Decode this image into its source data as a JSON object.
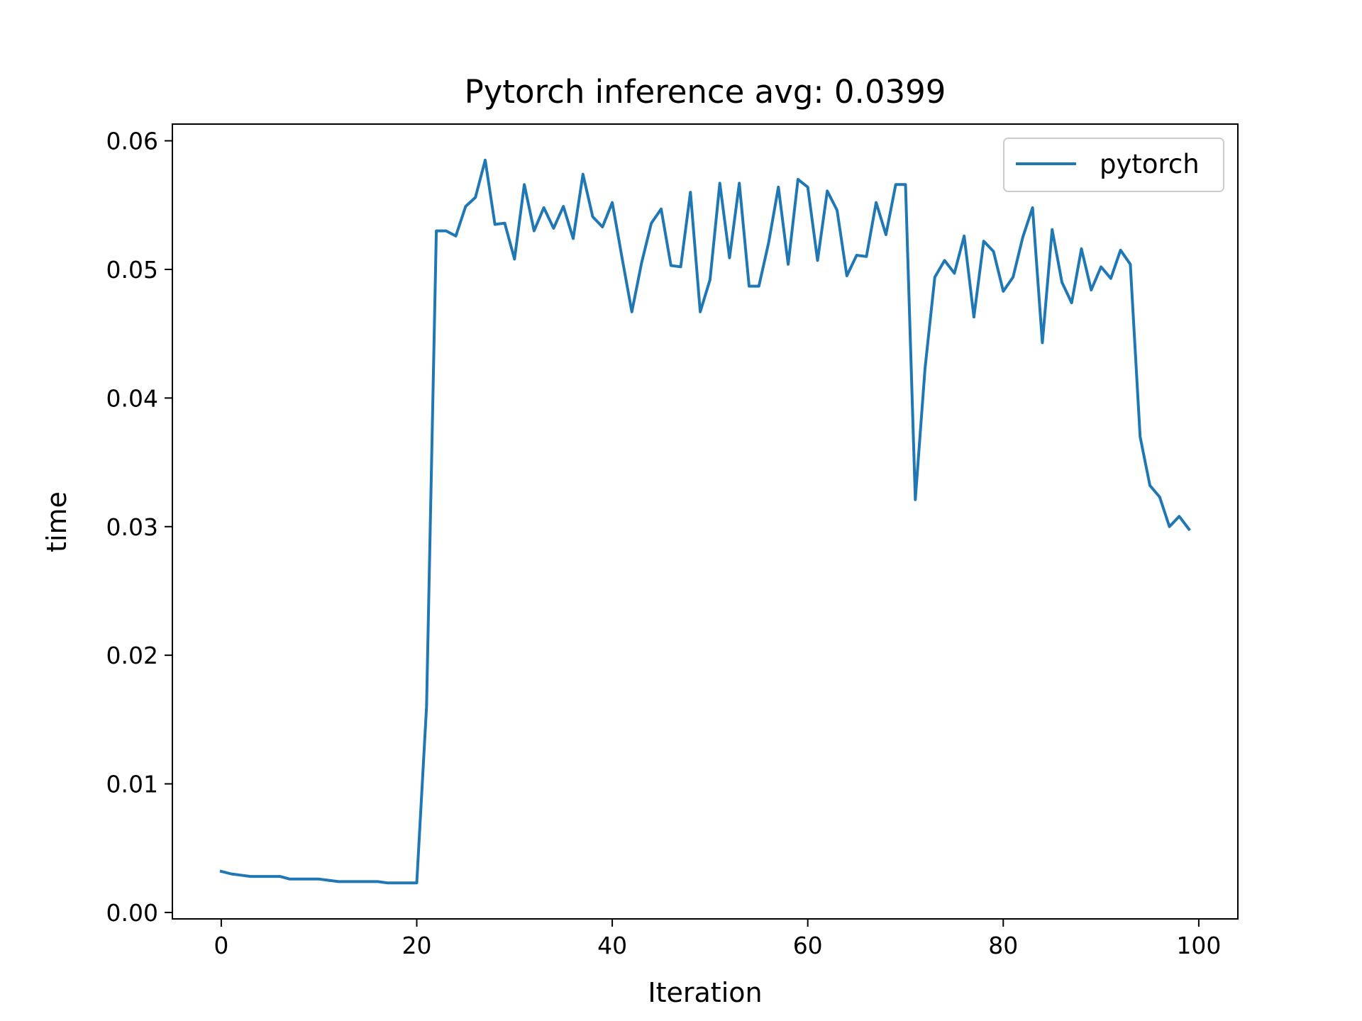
{
  "chart_data": {
    "type": "line",
    "title": "Pytorch inference avg: 0.0399",
    "xlabel": "Iteration",
    "ylabel": "time",
    "xlim": [
      -5,
      104
    ],
    "ylim": [
      -0.0005,
      0.0613
    ],
    "xticks": [
      0,
      20,
      40,
      60,
      80,
      100
    ],
    "xtick_labels": [
      "0",
      "20",
      "40",
      "60",
      "80",
      "100"
    ],
    "yticks": [
      0.0,
      0.01,
      0.02,
      0.03,
      0.04,
      0.05,
      0.06
    ],
    "ytick_labels": [
      "0.00",
      "0.01",
      "0.02",
      "0.03",
      "0.04",
      "0.05",
      "0.06"
    ],
    "grid": false,
    "legend_position": "top-right",
    "series": [
      {
        "name": "pytorch",
        "color": "#1f77b4",
        "x": [
          0,
          1,
          2,
          3,
          4,
          5,
          6,
          7,
          8,
          9,
          10,
          11,
          12,
          13,
          14,
          15,
          16,
          17,
          18,
          19,
          20,
          21,
          22,
          23,
          24,
          25,
          26,
          27,
          28,
          29,
          30,
          31,
          32,
          33,
          34,
          35,
          36,
          37,
          38,
          39,
          40,
          41,
          42,
          43,
          44,
          45,
          46,
          47,
          48,
          49,
          50,
          51,
          52,
          53,
          54,
          55,
          56,
          57,
          58,
          59,
          60,
          61,
          62,
          63,
          64,
          65,
          66,
          67,
          68,
          69,
          70,
          71,
          72,
          73,
          74,
          75,
          76,
          77,
          78,
          79,
          80,
          81,
          82,
          83,
          84,
          85,
          86,
          87,
          88,
          89,
          90,
          91,
          92,
          93,
          94,
          95,
          96,
          97,
          98,
          99
        ],
        "y": [
          0.0032,
          0.003,
          0.0029,
          0.0028,
          0.0028,
          0.0028,
          0.0028,
          0.0026,
          0.0026,
          0.0026,
          0.0026,
          0.0025,
          0.0024,
          0.0024,
          0.0024,
          0.0024,
          0.0024,
          0.0023,
          0.0023,
          0.0023,
          0.0023,
          0.016,
          0.053,
          0.053,
          0.0526,
          0.0549,
          0.0556,
          0.0585,
          0.0535,
          0.0536,
          0.0508,
          0.0566,
          0.053,
          0.0548,
          0.0532,
          0.0549,
          0.0524,
          0.0574,
          0.0541,
          0.0533,
          0.0552,
          0.0509,
          0.0467,
          0.0505,
          0.0536,
          0.0547,
          0.0503,
          0.0502,
          0.056,
          0.0467,
          0.0492,
          0.0567,
          0.0509,
          0.0567,
          0.0487,
          0.0487,
          0.0521,
          0.0564,
          0.0504,
          0.057,
          0.0564,
          0.0507,
          0.0561,
          0.0546,
          0.0495,
          0.0511,
          0.051,
          0.0552,
          0.0527,
          0.0566,
          0.0566,
          0.0321,
          0.0423,
          0.0494,
          0.0507,
          0.0497,
          0.0526,
          0.0463,
          0.0522,
          0.0514,
          0.0483,
          0.0494,
          0.0525,
          0.0548,
          0.0443,
          0.0531,
          0.049,
          0.0474,
          0.0516,
          0.0484,
          0.0502,
          0.0493,
          0.0515,
          0.0504,
          0.037,
          0.0332,
          0.0323,
          0.03,
          0.0308,
          0.0298
        ]
      }
    ]
  }
}
